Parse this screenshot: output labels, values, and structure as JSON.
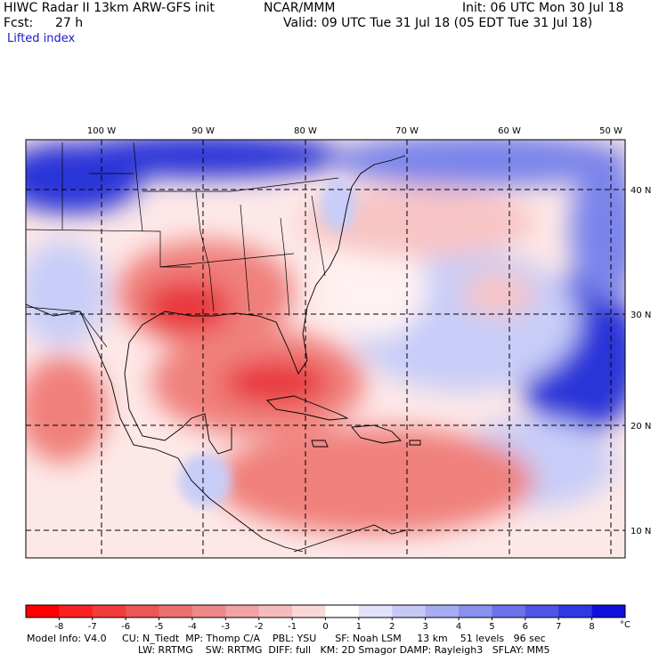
{
  "header": {
    "model": "HIWC Radar II 13km ARW-GFS init",
    "org": "NCAR/MMM",
    "init": "Init: 06 UTC Mon 30 Jul 18",
    "fcst_label": "Fcst:",
    "fcst_value": "27 h",
    "valid": "Valid: 09 UTC Tue 31 Jul 18 (05 EDT Tue 31 Jul 18)",
    "field": "Lifted index"
  },
  "map": {
    "lon_labels": [
      "100 W",
      "90 W",
      "80 W",
      "70 W",
      "60 W",
      "50 W"
    ],
    "lat_labels": [
      "40 N",
      "30 N",
      "20 N",
      "10 N"
    ],
    "colors": {
      "strong_neg": "#e8383c",
      "mid_neg": "#f0807c",
      "weak_neg": "#f8c4c4",
      "neutral": "#fff2f2",
      "weak_pos": "#c8cdf8",
      "mid_pos": "#7a84ea",
      "strong_pos": "#2a34d8"
    }
  },
  "colorbar": {
    "ticks": [
      "-8",
      "-7",
      "-6",
      "-5",
      "-4",
      "-3",
      "-2",
      "-1",
      "0",
      "1",
      "2",
      "3",
      "4",
      "5",
      "6",
      "7",
      "8"
    ],
    "unit": "°C",
    "colors": [
      "#ff0000",
      "#f82020",
      "#f23c3c",
      "#ec5656",
      "#ec7070",
      "#ee8888",
      "#f2a2a2",
      "#f6bcbc",
      "#fad8d8",
      "#ffffff",
      "#e2e2fa",
      "#c6c8f6",
      "#a8acf2",
      "#8a90ee",
      "#6c72ea",
      "#4e54e6",
      "#3038e2",
      "#1010dc"
    ]
  },
  "footer": {
    "line1": "Model Info: V4.0     CU: N_Tiedt  MP: Thomp C/A    PBL: YSU      SF: Noah LSM     13 km    51 levels   96 sec",
    "line2": "LW: RRTMG    SW: RRTMG  DIFF: full   KM: 2D Smagor DAMP: Rayleigh3   SFLAY: MM5"
  }
}
